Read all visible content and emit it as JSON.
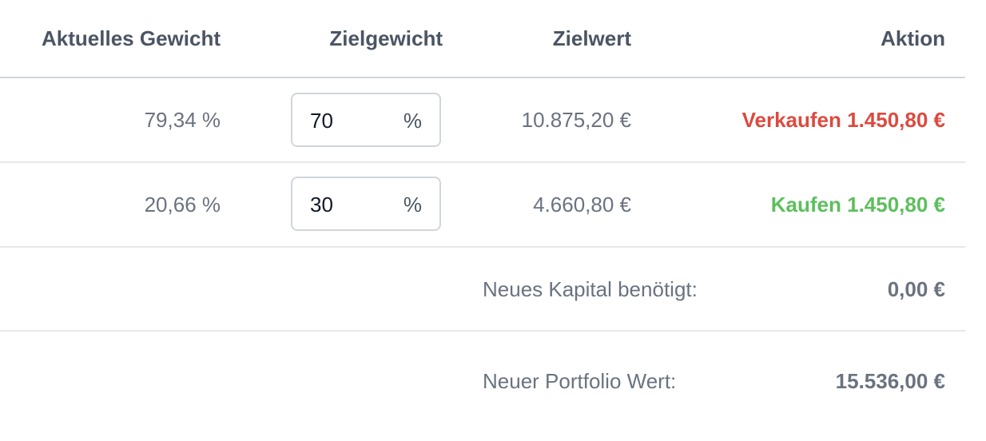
{
  "table": {
    "headers": [
      "Aktuelles Gewicht",
      "Zielgewicht",
      "Zielwert",
      "Aktion"
    ],
    "rows": [
      {
        "current_weight": "79,34 %",
        "target_weight": "70",
        "unit": "%",
        "target_value": "10.875,20 €",
        "action": "Verkaufen 1.450,80 €"
      },
      {
        "current_weight": "20,66 %",
        "target_weight": "30",
        "unit": "%",
        "target_value": "4.660,80 €",
        "action": "Kaufen 1.450,80 €"
      }
    ],
    "summary": [
      {
        "label": "Neues Kapital benötigt:",
        "value": "0,00 €"
      },
      {
        "label": "Neuer Portfolio Wert:",
        "value": "15.536,00 €"
      }
    ]
  }
}
